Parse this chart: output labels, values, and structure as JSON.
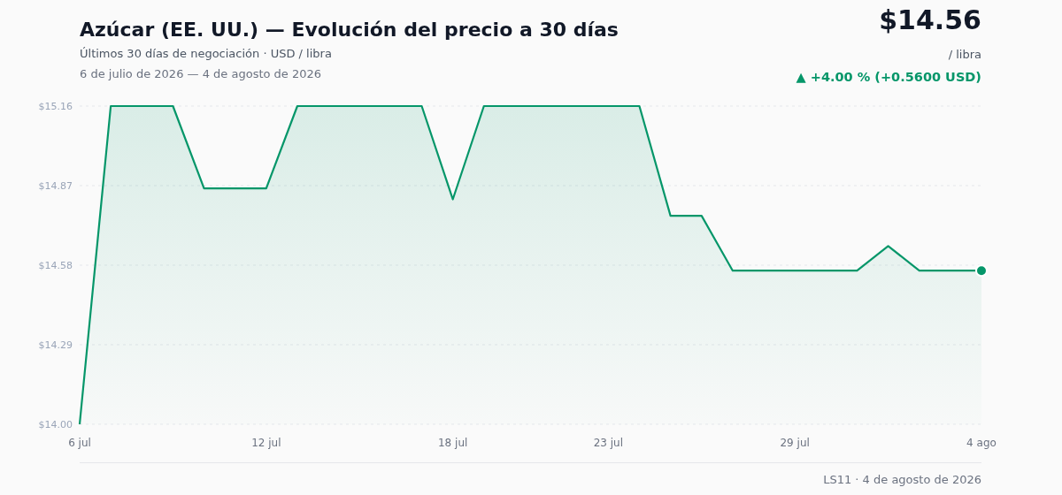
{
  "chart_data": {
    "type": "area",
    "title": "Azúcar (EE. UU.) — Evolución del precio a 30 días",
    "subtitle": "Últimos 30 días de negociación · USD / libra",
    "annotations": [
      "6 de julio de 2026 — 4 de agosto de 2026",
      "$14.56",
      "/ libra",
      "▲ +4.00 % (+0.5600 USD)",
      "LS11 · 4 de agosto de 2026"
    ],
    "x": [
      "2026-07-06",
      "2026-07-07",
      "2026-07-08",
      "2026-07-09",
      "2026-07-10",
      "2026-07-11",
      "2026-07-12",
      "2026-07-13",
      "2026-07-14",
      "2026-07-15",
      "2026-07-16",
      "2026-07-17",
      "2026-07-18",
      "2026-07-19",
      "2026-07-20",
      "2026-07-21",
      "2026-07-22",
      "2026-07-23",
      "2026-07-24",
      "2026-07-25",
      "2026-07-26",
      "2026-07-27",
      "2026-07-28",
      "2026-07-29",
      "2026-07-30",
      "2026-07-31",
      "2026-08-01",
      "2026-08-02",
      "2026-08-03",
      "2026-08-04"
    ],
    "xlim": [
      "2026-07-06",
      "2026-08-04"
    ],
    "xticks": [
      {
        "value": "2026-07-06",
        "label": "6 jul"
      },
      {
        "value": "2026-07-12",
        "label": "12 jul"
      },
      {
        "value": "2026-07-18",
        "label": "18 jul"
      },
      {
        "value": "2026-07-23",
        "label": "23 jul"
      },
      {
        "value": "2026-07-29",
        "label": "29 jul"
      },
      {
        "value": "2026-08-04",
        "label": "4 ago"
      }
    ],
    "ylim": [
      14.0,
      15.16
    ],
    "yticks": [
      {
        "value": 14.0,
        "label": "$14.00"
      },
      {
        "value": 14.29,
        "label": "$14.29"
      },
      {
        "value": 14.58,
        "label": "$14.58"
      },
      {
        "value": 14.87,
        "label": "$14.87"
      },
      {
        "value": 15.16,
        "label": "$15.16"
      }
    ],
    "grid": "y",
    "series": [
      {
        "color": "#059669",
        "values": [
          14.0,
          15.16,
          15.16,
          15.16,
          14.86,
          14.86,
          14.86,
          15.16,
          15.16,
          15.16,
          15.16,
          15.16,
          14.82,
          15.16,
          15.16,
          15.16,
          15.16,
          15.16,
          15.16,
          14.76,
          14.76,
          14.56,
          14.56,
          14.56,
          14.56,
          14.56,
          14.65,
          14.56,
          14.56,
          14.56
        ]
      },
      {
        "type": "scatter",
        "color": "#059669",
        "marker": "circle",
        "x": [
          "2026-08-04"
        ],
        "values": [
          14.56
        ]
      }
    ]
  }
}
